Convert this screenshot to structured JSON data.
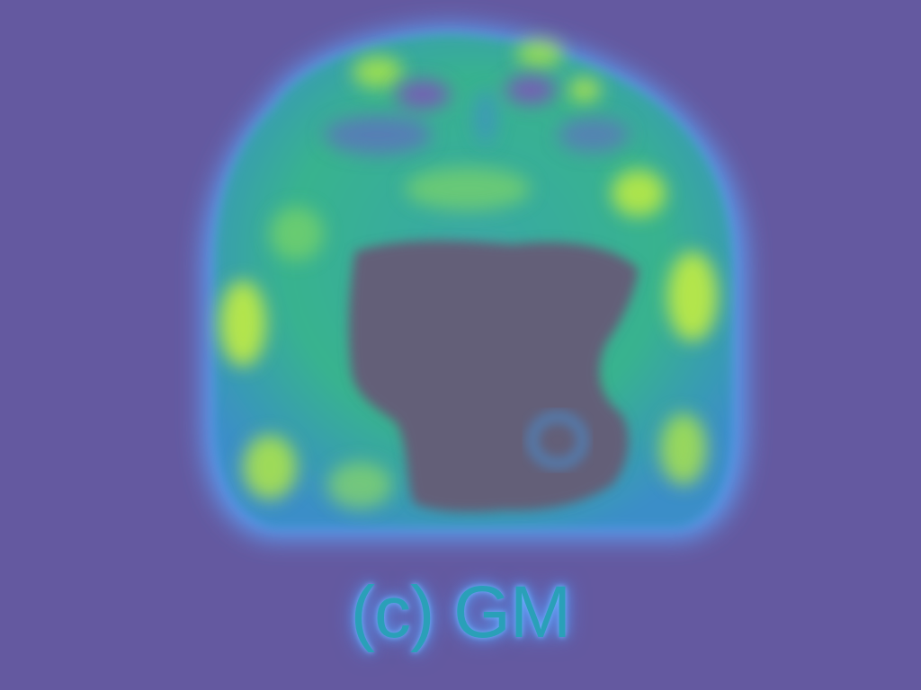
{
  "figure": {
    "caption": "(c) GM"
  },
  "colors": {
    "background": "#6459a0",
    "tissue_low": "#3f8fc8",
    "tissue_mid": "#2fc08a",
    "tissue_high": "#c9f03c",
    "void": "#635e78",
    "halo": "#5aa8ff",
    "caption": "#2aa0b8"
  }
}
